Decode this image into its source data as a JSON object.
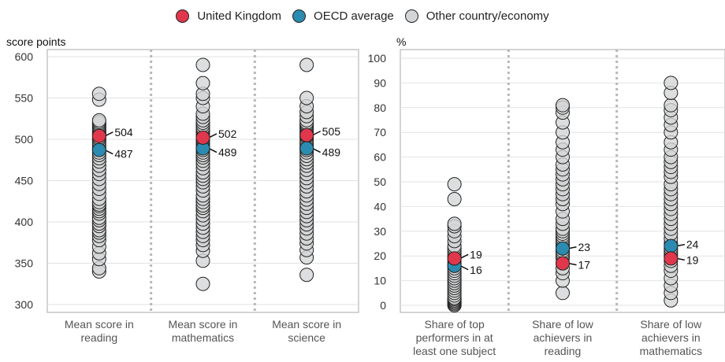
{
  "legend": {
    "items": [
      {
        "label": "United Kingdom",
        "color": "#e0374d"
      },
      {
        "label": "OECD average",
        "color": "#2b8bb0"
      },
      {
        "label": "Other country/economy",
        "color": "#d3d5d6"
      }
    ]
  },
  "chart_data": [
    {
      "type": "scatter",
      "ylabel": "score points",
      "ylim": [
        300,
        600
      ],
      "yticks": [
        300,
        350,
        400,
        450,
        500,
        550,
        600
      ],
      "grid": true,
      "categories": [
        "Mean score in reading",
        "Mean score in mathematics",
        "Mean score in science"
      ],
      "category_lines": [
        [
          "Mean score in",
          "reading"
        ],
        [
          "Mean score in",
          "mathematics"
        ],
        [
          "Mean score in",
          "science"
        ]
      ],
      "series": [
        {
          "name": "United Kingdom",
          "values": [
            504,
            502,
            505
          ]
        },
        {
          "name": "OECD average",
          "values": [
            487,
            489,
            489
          ]
        },
        {
          "name": "Other country/economy",
          "values": [
            [
              340,
              344,
              355,
              362,
              370,
              378,
              383,
              387,
              390,
              395,
              398,
              402,
              405,
              410,
              413,
              416,
              419,
              421,
              424,
              428,
              434,
              440,
              446,
              452,
              458,
              463,
              468,
              473,
              477,
              481,
              484,
              488,
              491,
              494,
              497,
              500,
              502,
              505,
              507,
              509,
              511,
              513,
              515,
              517,
              519,
              521,
              523,
              548,
              555
            ],
            [
              325,
              353,
              365,
              372,
              378,
              383,
              388,
              393,
              398,
              403,
              408,
              413,
              417,
              420,
              424,
              428,
              432,
              438,
              443,
              448,
              452,
              456,
              460,
              465,
              470,
              474,
              478,
              481,
              484,
              487,
              490,
              493,
              495,
              498,
              500,
              503,
              505,
              508,
              510,
              512,
              514,
              517,
              520,
              523,
              527,
              531,
              540,
              550,
              555,
              568,
              590
            ],
            [
              336,
              357,
              366,
              374,
              380,
              386,
              392,
              397,
              402,
              407,
              412,
              417,
              422,
              427,
              432,
              437,
              443,
              448,
              453,
              458,
              463,
              468,
              472,
              476,
              480,
              484,
              487,
              490,
              493,
              496,
              499,
              502,
              504,
              507,
              509,
              512,
              514,
              516,
              518,
              520,
              523,
              528,
              533,
              540,
              550,
              590
            ]
          ]
        }
      ],
      "value_labels": [
        {
          "uk": "504",
          "oecd": "487"
        },
        {
          "uk": "502",
          "oecd": "489"
        },
        {
          "uk": "505",
          "oecd": "489"
        }
      ]
    },
    {
      "type": "scatter",
      "ylabel": "%",
      "ylim": [
        0,
        100
      ],
      "yticks": [
        0,
        10,
        20,
        30,
        40,
        50,
        60,
        70,
        80,
        90,
        100
      ],
      "grid": true,
      "categories": [
        "Share of top performers in at least one subject",
        "Share of low achievers in reading",
        "Share of low achievers in mathematics"
      ],
      "category_lines": [
        [
          "Share of top",
          "performers in at",
          "least one subject"
        ],
        [
          "Share of low",
          "achievers in",
          "reading"
        ],
        [
          "Share of low",
          "achievers in",
          "mathematics"
        ]
      ],
      "series": [
        {
          "name": "United Kingdom",
          "values": [
            19,
            17,
            19
          ]
        },
        {
          "name": "OECD average",
          "values": [
            16,
            23,
            24
          ]
        },
        {
          "name": "Other country/economy",
          "values": [
            [
              0,
              0.5,
              1,
              1.5,
              2,
              2.5,
              3,
              4,
              5,
              6,
              7,
              8,
              9,
              10,
              11,
              12,
              13,
              14,
              15,
              16,
              17,
              18,
              19,
              20,
              21,
              22,
              23,
              24,
              26,
              28,
              30,
              32,
              33,
              43,
              49
            ],
            [
              5,
              10,
              13,
              15,
              17,
              19,
              20,
              21,
              22,
              23,
              24,
              25,
              26,
              27,
              28,
              29,
              30,
              31,
              33,
              35,
              38,
              41,
              43,
              45,
              47,
              49,
              51,
              53,
              55,
              57,
              60,
              63,
              66,
              70,
              74,
              78,
              80,
              81
            ],
            [
              2,
              5,
              8,
              11,
              14,
              16,
              18,
              20,
              21,
              22,
              23,
              25,
              27,
              29,
              31,
              33,
              35,
              37,
              39,
              41,
              43,
              45,
              47,
              49,
              52,
              54,
              56,
              58,
              60,
              63,
              66,
              70,
              73,
              76,
              79,
              81,
              86,
              90
            ]
          ]
        }
      ],
      "value_labels": [
        {
          "uk": "19",
          "oecd": "16"
        },
        {
          "uk": "17",
          "oecd": "23"
        },
        {
          "uk": "19",
          "oecd": "24"
        }
      ]
    }
  ]
}
